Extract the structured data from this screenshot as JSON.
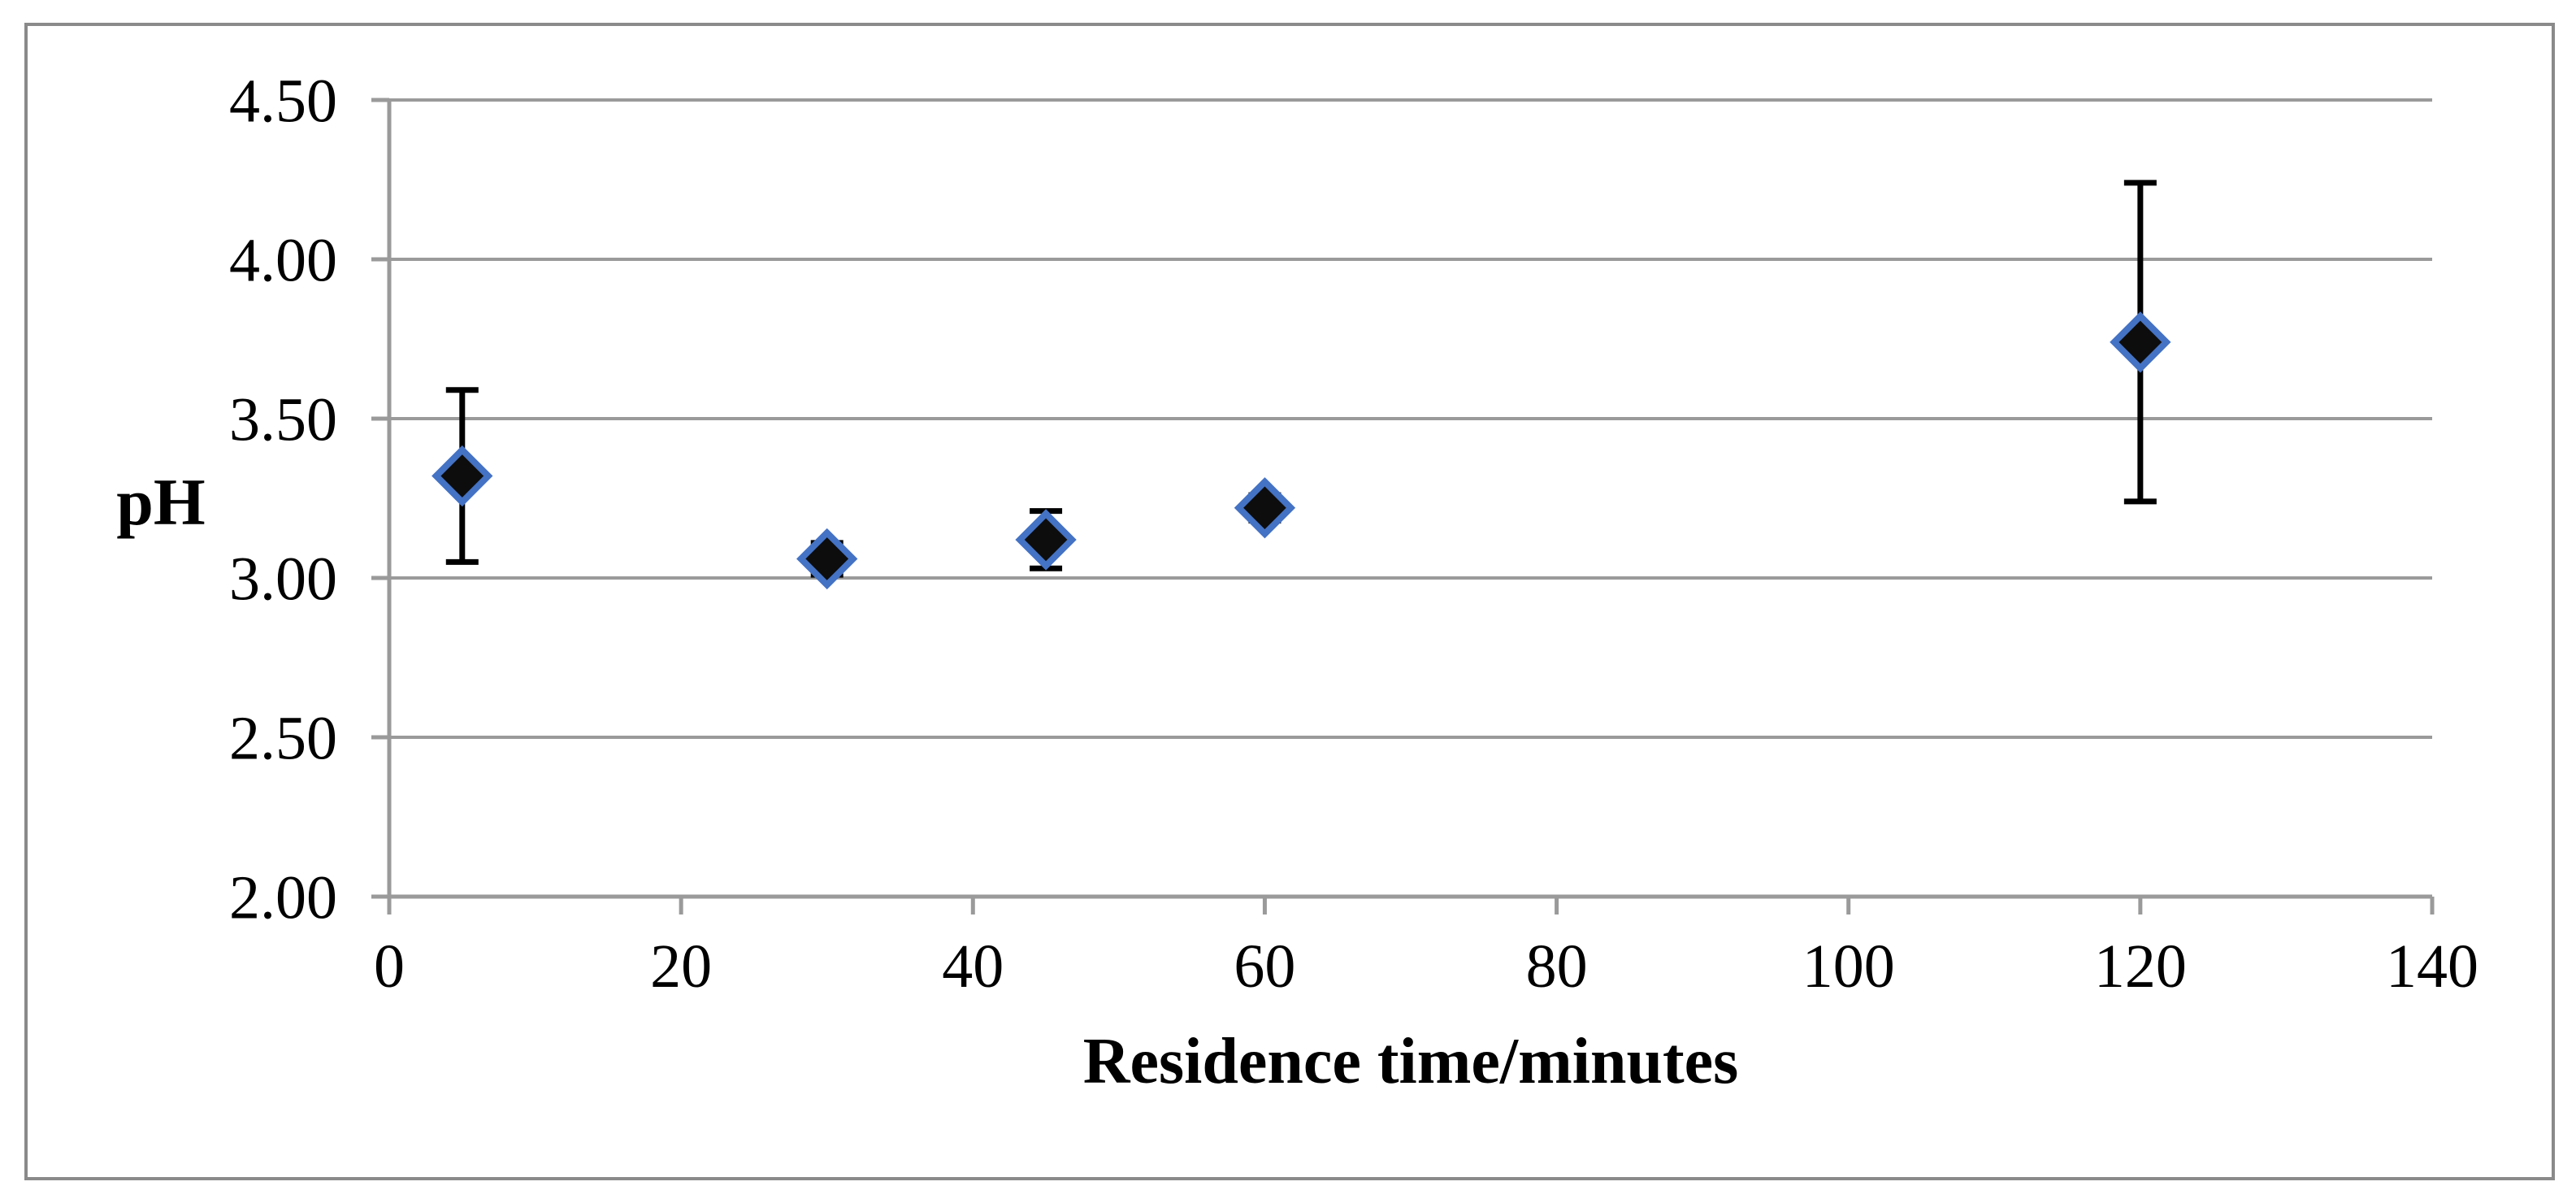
{
  "figure": {
    "background": "#ffffff",
    "frame_color": "#8a8a8a"
  },
  "chart_data": {
    "type": "scatter",
    "title": "",
    "xlabel": "Residence time/minutes",
    "ylabel": "pH",
    "xlim": [
      0,
      140
    ],
    "ylim": [
      2.0,
      4.5
    ],
    "x_ticks": [
      0,
      20,
      40,
      60,
      80,
      100,
      120,
      140
    ],
    "x_tick_labels": [
      "0",
      "20",
      "40",
      "60",
      "80",
      "100",
      "120",
      "140"
    ],
    "y_ticks": [
      4.5,
      4.0,
      3.5,
      3.0,
      2.5,
      2.0
    ],
    "y_tick_labels": [
      "4.50",
      "4.00",
      "3.50",
      "3.00",
      "2.50",
      "2.00"
    ],
    "grid": "horizontal-major",
    "legend_position": "none",
    "colors": {
      "gridline": "#9a9a9a",
      "axis": "#9a9a9a",
      "text": "#000000"
    },
    "series": [
      {
        "marker": "diamond",
        "marker_fill": "#0d0d0d",
        "marker_stroke": "#4472c4",
        "error_bar_color": "#000000",
        "points": [
          {
            "x": 5,
            "y": 3.32,
            "y_error": 0.27
          },
          {
            "x": 30,
            "y": 3.06,
            "y_error": 0.05
          },
          {
            "x": 45,
            "y": 3.12,
            "y_error": 0.09
          },
          {
            "x": 60,
            "y": 3.22,
            "y_error": 0.04
          },
          {
            "x": 120,
            "y": 3.74,
            "y_error": 0.5
          }
        ]
      }
    ]
  }
}
